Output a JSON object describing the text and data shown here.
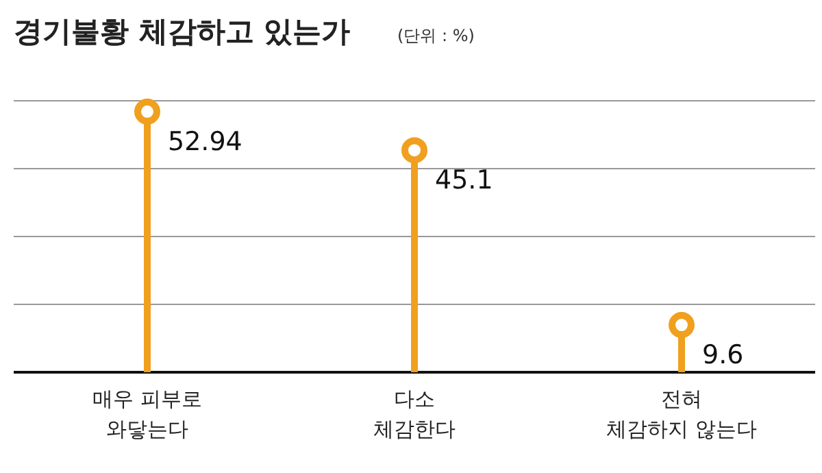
{
  "chart_data": {
    "type": "lollipop",
    "title": "경기불황 체감하고 있는가",
    "subtitle": "(단위 : %)",
    "categories": [
      "매우 피부로\n와닿는다",
      "다소\n체감한다",
      "전혀\n체감하지 않는다"
    ],
    "values": [
      52.94,
      45.1,
      9.6
    ],
    "color": "#f0a01e",
    "data_labels": true,
    "marker": "circle"
  }
}
